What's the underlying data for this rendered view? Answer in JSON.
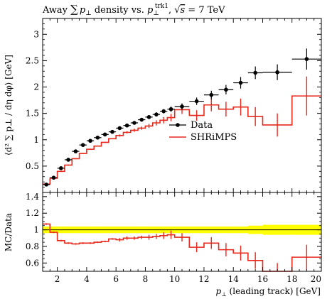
{
  "chart_data": [
    {
      "type": "scatter",
      "panel": "main",
      "title": "Away ∑ p⊥ density vs. p⊥trk1, √s = 7 TeV",
      "title_parts": {
        "lead": "Away ",
        "sum": "∑",
        "p1": "p",
        "perp1": "⊥",
        "mid": " density vs. ",
        "p2": "p",
        "perp2": "⊥",
        "sup": "trk1",
        "comma": ", ",
        "sqrt": "√",
        "s": "s",
        "eq": " = 7 TeV"
      },
      "ylabel": "⟨d² ∑ p⊥ / dη dφ⟩ [GeV]",
      "xlim": [
        1,
        20
      ],
      "ylim": [
        0,
        3.3
      ],
      "yticks": [
        0.5,
        1,
        1.5,
        2,
        2.5,
        3
      ],
      "ytick_labels": [
        "0.5",
        "1",
        "1.5",
        "2",
        "2.5",
        "3"
      ],
      "legend": {
        "placement": "center-right",
        "data_label": "Data",
        "mc_label": "SHRiMPS"
      },
      "colors": {
        "data": "#000000",
        "mc": "#e8291c"
      },
      "series": [
        {
          "name": "Data",
          "x": [
            1.25,
            1.75,
            2.25,
            2.75,
            3.25,
            3.75,
            4.25,
            4.75,
            5.25,
            5.75,
            6.25,
            6.75,
            7.25,
            7.75,
            8.25,
            8.75,
            9.25,
            9.75,
            10.5,
            11.5,
            12.5,
            13.5,
            14.5,
            15.5,
            17.0,
            19.0
          ],
          "y": [
            0.15,
            0.28,
            0.46,
            0.62,
            0.78,
            0.9,
            0.98,
            1.04,
            1.1,
            1.15,
            1.22,
            1.27,
            1.32,
            1.38,
            1.43,
            1.48,
            1.54,
            1.58,
            1.63,
            1.73,
            1.85,
            1.95,
            2.08,
            2.27,
            2.28,
            2.53
          ],
          "xerr": [
            0.25,
            0.25,
            0.25,
            0.25,
            0.25,
            0.25,
            0.25,
            0.25,
            0.25,
            0.25,
            0.25,
            0.25,
            0.25,
            0.25,
            0.25,
            0.25,
            0.25,
            0.25,
            0.5,
            0.5,
            0.5,
            0.5,
            0.5,
            0.5,
            1.0,
            1.0
          ],
          "yerr": [
            0.01,
            0.01,
            0.01,
            0.01,
            0.01,
            0.01,
            0.01,
            0.01,
            0.01,
            0.02,
            0.02,
            0.02,
            0.03,
            0.03,
            0.03,
            0.04,
            0.04,
            0.05,
            0.06,
            0.07,
            0.08,
            0.09,
            0.11,
            0.12,
            0.15,
            0.2
          ]
        },
        {
          "name": "SHRiMPS",
          "type": "step",
          "edges": [
            1.0,
            1.5,
            2.0,
            2.5,
            3.0,
            3.5,
            4.0,
            4.5,
            5.0,
            5.5,
            6.0,
            6.5,
            7.0,
            7.5,
            8.0,
            8.5,
            9.0,
            9.5,
            10.0,
            11.0,
            12.0,
            13.0,
            14.0,
            15.0,
            16.0,
            18.0,
            20.0
          ],
          "values": [
            0.16,
            0.27,
            0.4,
            0.52,
            0.64,
            0.74,
            0.82,
            0.88,
            0.95,
            1.02,
            1.08,
            1.14,
            1.18,
            1.22,
            1.26,
            1.32,
            1.37,
            1.42,
            1.57,
            1.46,
            1.66,
            1.58,
            1.62,
            1.44,
            1.28,
            1.83
          ],
          "yerr": [
            0.01,
            0.01,
            0.01,
            0.01,
            0.01,
            0.01,
            0.01,
            0.01,
            0.01,
            0.01,
            0.02,
            0.02,
            0.03,
            0.03,
            0.04,
            0.05,
            0.06,
            0.07,
            0.08,
            0.1,
            0.12,
            0.14,
            0.16,
            0.18,
            0.22,
            0.37
          ]
        }
      ]
    },
    {
      "type": "line",
      "panel": "ratio",
      "ylabel": "MC/Data",
      "xlabel": "p⊥ (leading track) [GeV]",
      "xlabel_parts": {
        "p": "p",
        "perp": "⊥",
        "rest": " (leading track) [GeV]"
      },
      "xlim": [
        1,
        20
      ],
      "ylim": [
        0.5,
        1.45
      ],
      "xticks": [
        2,
        4,
        6,
        8,
        10,
        12,
        14,
        16,
        18,
        20
      ],
      "xtick_labels": [
        "2",
        "4",
        "6",
        "8",
        "10",
        "12",
        "14",
        "16",
        "18",
        "20"
      ],
      "yticks": [
        0.6,
        0.8,
        1.0,
        1.2,
        1.4
      ],
      "ytick_labels": [
        "0.6",
        "0.8",
        "1",
        "1.2",
        "1.4"
      ],
      "colors": {
        "band": "#ffff00",
        "mc": "#e8291c",
        "ref": "#000000"
      },
      "data_band": {
        "edges": [
          1.0,
          1.5,
          2.0,
          2.5,
          3.0,
          3.5,
          4.0,
          4.5,
          5.0,
          5.5,
          6.0,
          6.5,
          7.0,
          7.5,
          8.0,
          8.5,
          9.0,
          9.5,
          10.0,
          11.0,
          12.0,
          13.0,
          14.0,
          15.0,
          16.0,
          18.0,
          20.0
        ],
        "lo": [
          0.96,
          0.96,
          0.96,
          0.96,
          0.96,
          0.96,
          0.96,
          0.96,
          0.96,
          0.96,
          0.96,
          0.96,
          0.96,
          0.96,
          0.96,
          0.96,
          0.96,
          0.96,
          0.96,
          0.96,
          0.96,
          0.96,
          0.96,
          0.95,
          0.94,
          0.94
        ],
        "hi": [
          1.04,
          1.04,
          1.04,
          1.04,
          1.04,
          1.04,
          1.04,
          1.04,
          1.04,
          1.04,
          1.04,
          1.04,
          1.04,
          1.04,
          1.04,
          1.04,
          1.04,
          1.04,
          1.04,
          1.04,
          1.04,
          1.04,
          1.04,
          1.05,
          1.06,
          1.06
        ]
      },
      "series": [
        {
          "name": "SHRiMPS/Data",
          "type": "step",
          "edges": [
            1.0,
            1.5,
            2.0,
            2.5,
            3.0,
            3.5,
            4.0,
            4.5,
            5.0,
            5.5,
            6.0,
            6.5,
            7.0,
            7.5,
            8.0,
            8.5,
            9.0,
            9.5,
            10.0,
            11.0,
            12.0,
            13.0,
            14.0,
            15.0,
            16.0,
            18.0,
            20.0
          ],
          "values": [
            1.07,
            0.97,
            0.87,
            0.84,
            0.83,
            0.84,
            0.84,
            0.85,
            0.86,
            0.89,
            0.88,
            0.9,
            0.9,
            0.91,
            0.91,
            0.92,
            0.93,
            0.94,
            0.91,
            0.79,
            0.84,
            0.76,
            0.72,
            0.63,
            0.5,
            0.67
          ],
          "yerr": [
            0.01,
            0.01,
            0.01,
            0.01,
            0.01,
            0.01,
            0.01,
            0.01,
            0.01,
            0.01,
            0.02,
            0.02,
            0.02,
            0.02,
            0.03,
            0.03,
            0.04,
            0.05,
            0.05,
            0.06,
            0.07,
            0.08,
            0.09,
            0.1,
            0.1,
            0.15
          ]
        }
      ]
    }
  ]
}
